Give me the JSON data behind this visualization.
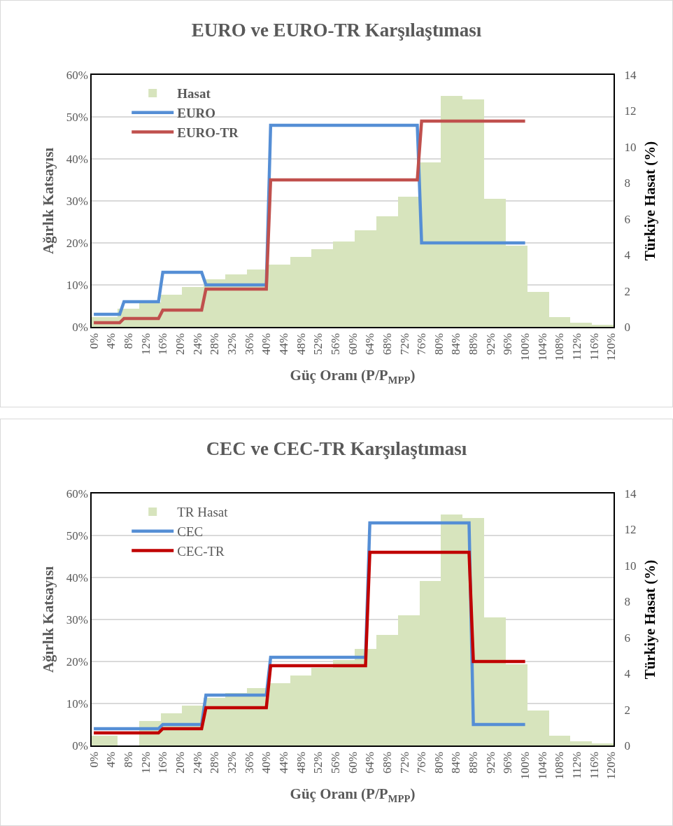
{
  "chart_data": [
    {
      "type": "line",
      "title": "EURO ve EURO-TR Karşılaştıması",
      "xlabel": "Güç Oranı (P/P$_{MPP}$)",
      "ylabel": "Ağırlık Katsayısı",
      "y2label": "Türkiye Hasat (%)",
      "series": [
        {
          "name": "Hasat",
          "type": "histogram",
          "axis": "y2",
          "color": "#d7e4bd",
          "bins": [
            -0.5,
            5.5,
            10.5,
            15.5,
            20.5,
            25.5,
            30.5,
            35.5,
            40.5,
            45.5,
            50.5,
            55.5,
            60.5,
            65.5,
            70.5,
            75.5,
            80.5,
            85.5,
            90.5,
            95.5,
            100.5,
            105.5,
            110.5,
            115.5,
            120.5
          ],
          "values": [
            0.55,
            1.0,
            1.35,
            1.8,
            2.2,
            2.65,
            2.9,
            3.2,
            3.45,
            3.9,
            4.3,
            4.75,
            5.35,
            6.15,
            7.25,
            9.15,
            12.85,
            12.65,
            7.1,
            4.5,
            1.95,
            0.55,
            0.22,
            0.13
          ]
        },
        {
          "name": "EURO",
          "color": "#558ed5",
          "x": [
            0,
            6,
            7,
            15,
            16,
            25,
            26,
            40,
            41,
            75,
            76,
            100
          ],
          "values": [
            3,
            3,
            6,
            6,
            13,
            13,
            10,
            10,
            48,
            48,
            20,
            20
          ]
        },
        {
          "name": "EURO-TR",
          "color": "#c0504d",
          "x": [
            0,
            6,
            7,
            15,
            16,
            25,
            26,
            40,
            41,
            75,
            76,
            100
          ],
          "values": [
            1,
            1,
            2,
            2,
            4,
            4,
            9,
            9,
            35,
            35,
            49,
            49
          ]
        }
      ],
      "xlim": [
        -0.5,
        120.5
      ],
      "xticks": [
        {
          "value": 0,
          "label": "0%"
        },
        {
          "value": 4,
          "label": "4%"
        },
        {
          "value": 8,
          "label": "8%"
        },
        {
          "value": 12,
          "label": "12%"
        },
        {
          "value": 16,
          "label": "16%"
        },
        {
          "value": 20,
          "label": "20%"
        },
        {
          "value": 24,
          "label": "24%"
        },
        {
          "value": 28,
          "label": "28%"
        },
        {
          "value": 32,
          "label": "32%"
        },
        {
          "value": 36,
          "label": "36%"
        },
        {
          "value": 40,
          "label": "40%"
        },
        {
          "value": 44,
          "label": "44%"
        },
        {
          "value": 48,
          "label": "48%"
        },
        {
          "value": 52,
          "label": "52%"
        },
        {
          "value": 56,
          "label": "56%"
        },
        {
          "value": 60,
          "label": "60%"
        },
        {
          "value": 64,
          "label": "64%"
        },
        {
          "value": 68,
          "label": "68%"
        },
        {
          "value": 72,
          "label": "72%"
        },
        {
          "value": 76,
          "label": "76%"
        },
        {
          "value": 80,
          "label": "80%"
        },
        {
          "value": 84,
          "label": "84%"
        },
        {
          "value": 88,
          "label": "88%"
        },
        {
          "value": 92,
          "label": "92%"
        },
        {
          "value": 96,
          "label": "96%"
        },
        {
          "value": 100,
          "label": "100%"
        },
        {
          "value": 104,
          "label": "104%"
        },
        {
          "value": 108,
          "label": "108%"
        },
        {
          "value": 112,
          "label": "112%"
        },
        {
          "value": 116,
          "label": "116%"
        },
        {
          "value": 120,
          "label": "120%"
        }
      ],
      "ylim": [
        0,
        60
      ],
      "yticks": [
        {
          "value": 0,
          "label": "0%"
        },
        {
          "value": 10,
          "label": "10%"
        },
        {
          "value": 20,
          "label": "20%"
        },
        {
          "value": 30,
          "label": "30%"
        },
        {
          "value": 40,
          "label": "40%"
        },
        {
          "value": 50,
          "label": "50%"
        },
        {
          "value": 60,
          "label": "60%"
        }
      ],
      "y2lim": [
        0,
        14
      ],
      "y2ticks": [
        0,
        2,
        4,
        6,
        8,
        10,
        12,
        14
      ],
      "grid": "y",
      "legend": "top left",
      "line_style": "solid"
    },
    {
      "type": "line",
      "title": "CEC ve CEC-TR Karşılaştıması",
      "xlabel": "Güç Oranı (P/P$_{MPP}$)",
      "ylabel": "Ağırlık Katsayısı",
      "y2label": "Türkiye Hasat (%)",
      "series": [
        {
          "name": "TR Hasat",
          "type": "histogram",
          "axis": "y2",
          "color": "#d7e4bd",
          "bins": [
            -0.5,
            5.5,
            10.5,
            15.5,
            20.5,
            25.5,
            30.5,
            35.5,
            40.5,
            45.5,
            50.5,
            55.5,
            60.5,
            65.5,
            70.5,
            75.5,
            80.5,
            85.5,
            90.5,
            95.5,
            100.5,
            105.5,
            110.5,
            115.5,
            120.5
          ],
          "values": [
            0.55,
            null,
            1.35,
            1.8,
            2.2,
            2.65,
            2.9,
            3.2,
            3.45,
            3.9,
            4.3,
            4.75,
            5.35,
            6.15,
            7.25,
            9.15,
            12.85,
            12.65,
            7.1,
            4.5,
            1.95,
            0.55,
            0.22,
            0.13
          ]
        },
        {
          "name": "CEC",
          "color": "#558ed5",
          "x": [
            0,
            15,
            16,
            25,
            26,
            40,
            41,
            63,
            64,
            87,
            88,
            100
          ],
          "values": [
            4,
            4,
            5,
            5,
            12,
            12,
            21,
            21,
            53,
            53,
            5,
            5
          ]
        },
        {
          "name": "CEC-TR",
          "color": "#c00000",
          "x": [
            0,
            15,
            16,
            25,
            26,
            40,
            41,
            63,
            64,
            87,
            88,
            100
          ],
          "values": [
            3,
            3,
            4,
            4,
            9,
            9,
            19,
            19,
            46,
            46,
            20,
            20
          ]
        }
      ],
      "xlim": [
        -0.5,
        120.5
      ],
      "xticks": [
        {
          "value": 0,
          "label": "0%"
        },
        {
          "value": 4,
          "label": "4%"
        },
        {
          "value": 8,
          "label": "8%"
        },
        {
          "value": 12,
          "label": "12%"
        },
        {
          "value": 16,
          "label": "16%"
        },
        {
          "value": 20,
          "label": "20%"
        },
        {
          "value": 24,
          "label": "24%"
        },
        {
          "value": 28,
          "label": "28%"
        },
        {
          "value": 32,
          "label": "32%"
        },
        {
          "value": 36,
          "label": "36%"
        },
        {
          "value": 40,
          "label": "40%"
        },
        {
          "value": 44,
          "label": "44%"
        },
        {
          "value": 48,
          "label": "48%"
        },
        {
          "value": 52,
          "label": "52%"
        },
        {
          "value": 56,
          "label": "56%"
        },
        {
          "value": 60,
          "label": "60%"
        },
        {
          "value": 64,
          "label": "64%"
        },
        {
          "value": 68,
          "label": "68%"
        },
        {
          "value": 72,
          "label": "72%"
        },
        {
          "value": 76,
          "label": "76%"
        },
        {
          "value": 80,
          "label": "80%"
        },
        {
          "value": 84,
          "label": "84%"
        },
        {
          "value": 88,
          "label": "88%"
        },
        {
          "value": 92,
          "label": "92%"
        },
        {
          "value": 96,
          "label": "96%"
        },
        {
          "value": 100,
          "label": "100%"
        },
        {
          "value": 104,
          "label": "104%"
        },
        {
          "value": 108,
          "label": "108%"
        },
        {
          "value": 112,
          "label": "112%"
        },
        {
          "value": 116,
          "label": "116%"
        },
        {
          "value": 120,
          "label": "120%"
        }
      ],
      "ylim": [
        0,
        60
      ],
      "yticks": [
        {
          "value": 0,
          "label": "0%"
        },
        {
          "value": 10,
          "label": "10%"
        },
        {
          "value": 20,
          "label": "20%"
        },
        {
          "value": 30,
          "label": "30%"
        },
        {
          "value": 40,
          "label": "40%"
        },
        {
          "value": 50,
          "label": "50%"
        },
        {
          "value": 60,
          "label": "60%"
        }
      ],
      "y2lim": [
        0,
        14
      ],
      "y2ticks": [
        0,
        2,
        4,
        6,
        8,
        10,
        12,
        14
      ],
      "grid": "y",
      "legend": "top left",
      "line_style": "solid"
    }
  ]
}
